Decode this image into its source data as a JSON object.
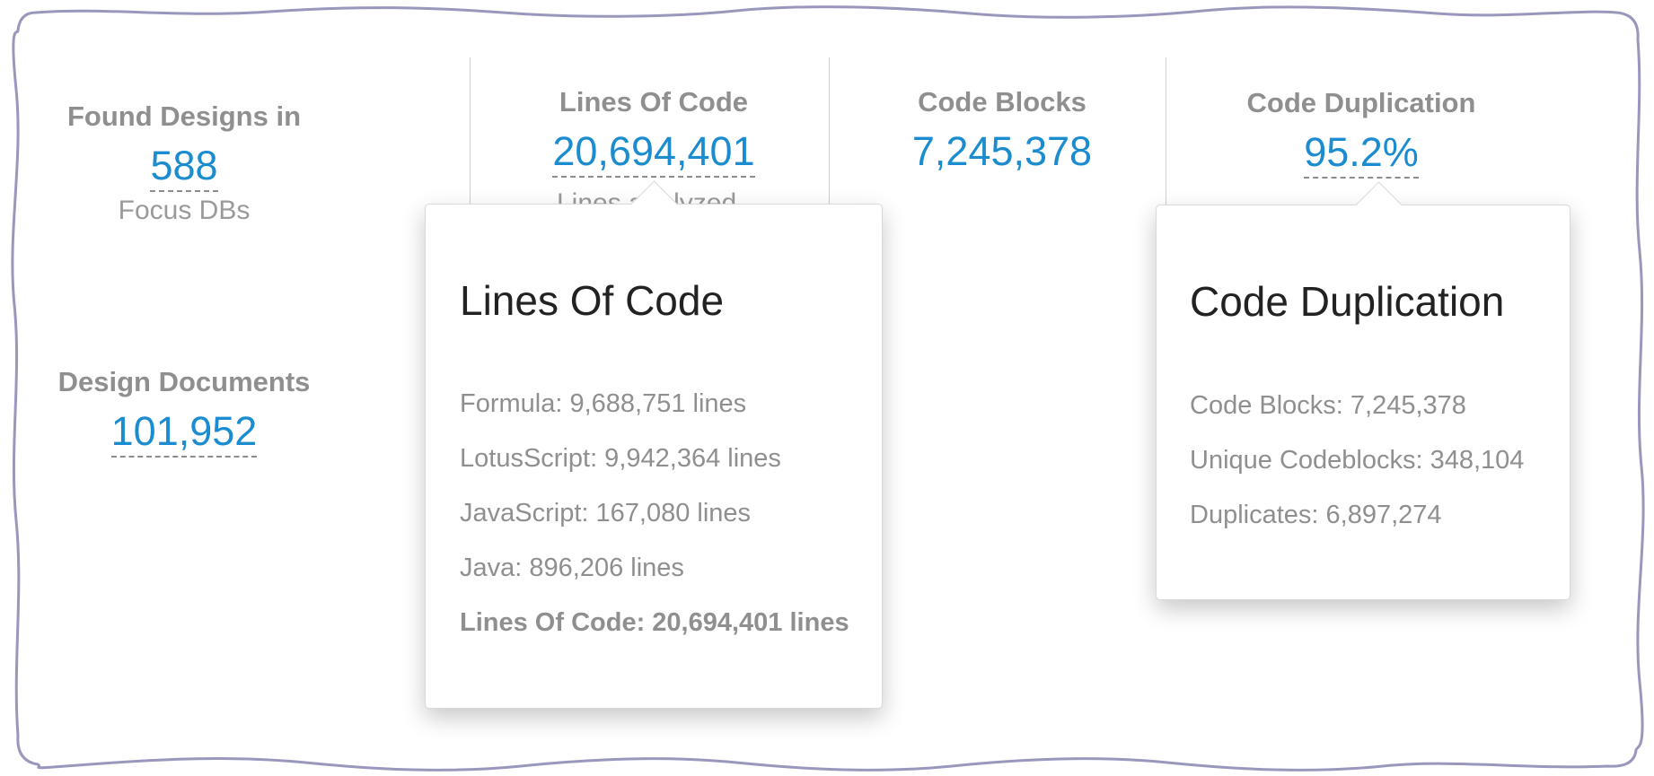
{
  "colors": {
    "accent": "#1a8ccf",
    "label": "#8f8f8f",
    "frame": "#9a97bd",
    "title": "#222222"
  },
  "stats": {
    "found_designs": {
      "label": "Found Designs in",
      "value": "588",
      "sub": "Focus DBs"
    },
    "design_documents": {
      "label": "Design Documents",
      "value": "101,952"
    },
    "lines_of_code": {
      "label": "Lines Of Code",
      "value": "20,694,401",
      "sub": "Lines analyzed"
    },
    "code_blocks": {
      "label": "Code Blocks",
      "value": "7,245,378"
    },
    "code_duplication": {
      "label": "Code Duplication",
      "value": "95.2%"
    }
  },
  "popovers": {
    "lines_of_code": {
      "title": "Lines Of Code",
      "items": [
        "Formula: 9,688,751 lines",
        "LotusScript: 9,942,364 lines",
        "JavaScript: 167,080 lines",
        "Java: 896,206 lines"
      ],
      "total": "Lines Of Code: 20,694,401 lines"
    },
    "code_duplication": {
      "title": "Code Duplication",
      "items": [
        "Code Blocks: 7,245,378",
        "Unique Codeblocks: 348,104",
        "Duplicates: 6,897,274"
      ]
    }
  }
}
